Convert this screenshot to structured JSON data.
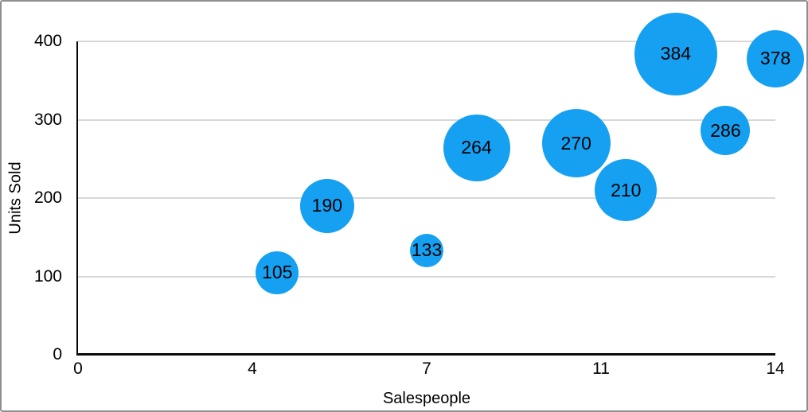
{
  "page": {
    "background": "#FFFFFF",
    "frame_color": "#8E8E8E"
  },
  "chart_data": {
    "type": "scatter",
    "subtype": "bubble",
    "title": "",
    "xlabel": "Salespeople",
    "ylabel": "Units Sold",
    "xlim": [
      0,
      14
    ],
    "ylim": [
      0,
      400
    ],
    "grid": "horizontal-only",
    "legend": "none",
    "x_ticks": [
      {
        "value": 0,
        "label": "0"
      },
      {
        "value": 3.5,
        "label": "4"
      },
      {
        "value": 7,
        "label": "7"
      },
      {
        "value": 10.5,
        "label": "11"
      },
      {
        "value": 14,
        "label": "14"
      }
    ],
    "y_ticks": [
      {
        "value": 0,
        "label": "0"
      },
      {
        "value": 100,
        "label": "100"
      },
      {
        "value": 200,
        "label": "200"
      },
      {
        "value": 300,
        "label": "300"
      },
      {
        "value": 400,
        "label": "400"
      }
    ],
    "series": [
      {
        "name": "Units Sold",
        "color": "#16A0F2",
        "points": [
          {
            "x": 4,
            "y": 105,
            "label": "105",
            "radius_px": 27
          },
          {
            "x": 5,
            "y": 190,
            "label": "190",
            "radius_px": 34
          },
          {
            "x": 7,
            "y": 133,
            "label": "133",
            "radius_px": 21
          },
          {
            "x": 8,
            "y": 264,
            "label": "264",
            "radius_px": 42
          },
          {
            "x": 10,
            "y": 270,
            "label": "270",
            "radius_px": 43
          },
          {
            "x": 11,
            "y": 210,
            "label": "210",
            "radius_px": 39
          },
          {
            "x": 12,
            "y": 384,
            "label": "384",
            "radius_px": 52
          },
          {
            "x": 13,
            "y": 286,
            "label": "286",
            "radius_px": 31
          },
          {
            "x": 14,
            "y": 378,
            "label": "378",
            "radius_px": 36
          }
        ]
      }
    ],
    "colors": {
      "bubble": "#16A0F2",
      "gridline": "#D8D8D8",
      "axis": "#0A0A0A",
      "text": "#000000"
    }
  }
}
